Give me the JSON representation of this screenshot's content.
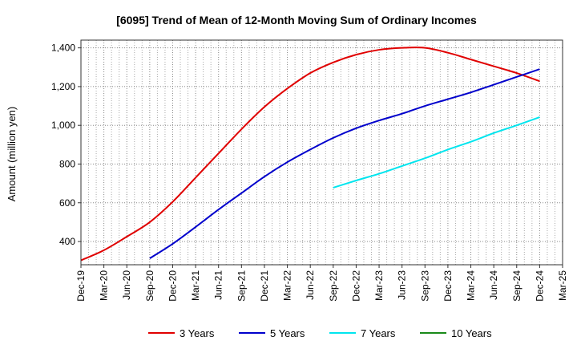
{
  "chart_data": {
    "type": "line",
    "title": "[6095]  Trend of Mean of 12-Month Moving Sum of Ordinary Incomes",
    "ylabel": "Amount (million yen)",
    "xlabel": "",
    "x_ticks": [
      "Dec-19",
      "Mar-20",
      "Jun-20",
      "Sep-20",
      "Dec-20",
      "Mar-21",
      "Jun-21",
      "Sep-21",
      "Dec-21",
      "Mar-22",
      "Jun-22",
      "Sep-22",
      "Dec-22",
      "Mar-23",
      "Jun-23",
      "Sep-23",
      "Dec-23",
      "Mar-24",
      "Jun-24",
      "Sep-24",
      "Dec-24",
      "Mar-25"
    ],
    "y_ticks": [
      400,
      600,
      800,
      1000,
      1200,
      1400
    ],
    "y_tick_labels": [
      "400",
      "600",
      "800",
      "1,000",
      "1,200",
      "1,400"
    ],
    "ylim": [
      280,
      1440
    ],
    "grid": true,
    "legend_position": "bottom",
    "series": [
      {
        "name": "3 Years",
        "color": "#e00000",
        "start_index": 0,
        "values": [
          303,
          355,
          425,
          500,
          605,
          730,
          855,
          980,
          1095,
          1190,
          1270,
          1325,
          1365,
          1390,
          1400,
          1400,
          1375,
          1340,
          1305,
          1270,
          1228
        ]
      },
      {
        "name": "5 Years",
        "color": "#0000cc",
        "start_index": 3,
        "values": [
          313,
          388,
          475,
          565,
          650,
          735,
          810,
          875,
          935,
          985,
          1025,
          1060,
          1100,
          1135,
          1170,
          1210,
          1250,
          1290
        ]
      },
      {
        "name": "7 Years",
        "color": "#00e5ee",
        "start_index": 11,
        "values": [
          678,
          715,
          750,
          790,
          830,
          875,
          915,
          960,
          1000,
          1042
        ]
      },
      {
        "name": "10 Years",
        "color": "#1a8a1a",
        "start_index": 0,
        "values": []
      }
    ]
  }
}
